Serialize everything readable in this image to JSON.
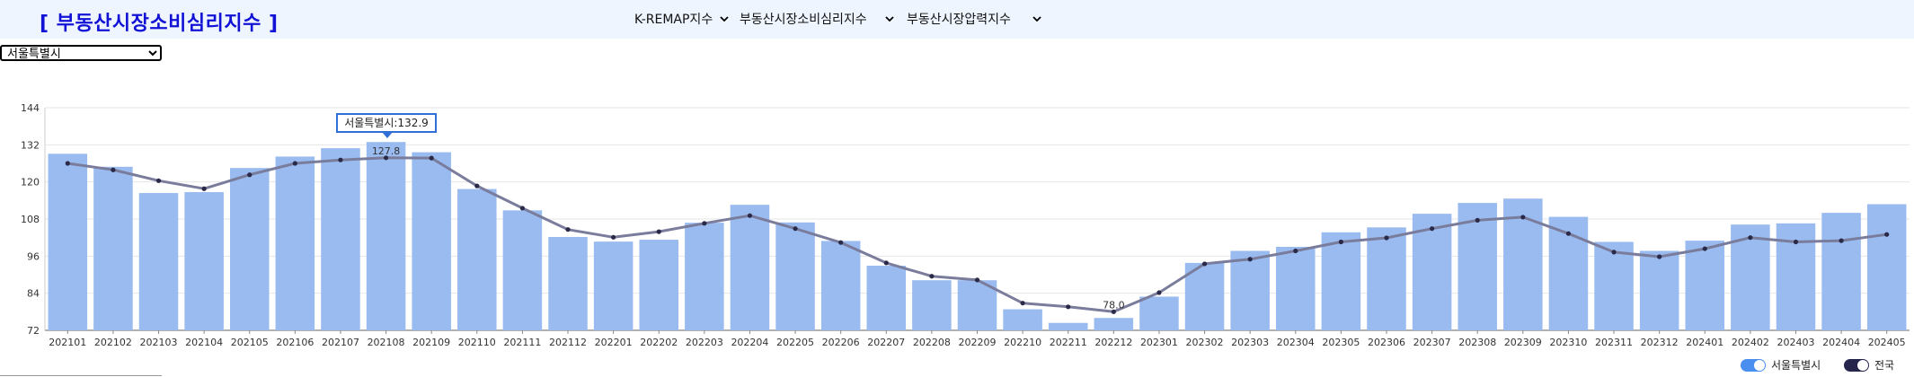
{
  "header": {
    "title": "[ 부동산시장소비심리지수 ]",
    "nav": [
      {
        "label": "K-REMAP지수"
      },
      {
        "label": "부동산시장소비심리지수"
      },
      {
        "label": "부동산시장압력지수"
      }
    ]
  },
  "region_select": {
    "value": "서울특별시"
  },
  "tooltip": {
    "text": "서울특별시:132.9"
  },
  "legend": [
    {
      "label": "서울특별시",
      "color": "#4a8ef0"
    },
    {
      "label": "전국",
      "color": "#25244a"
    }
  ],
  "chart_data": {
    "type": "bar",
    "categories": [
      "202101",
      "202102",
      "202103",
      "202104",
      "202105",
      "202106",
      "202107",
      "202108",
      "202109",
      "202110",
      "202111",
      "202112",
      "202201",
      "202202",
      "202203",
      "202204",
      "202205",
      "202206",
      "202207",
      "202208",
      "202209",
      "202210",
      "202211",
      "202212",
      "202301",
      "202302",
      "202303",
      "202304",
      "202305",
      "202306",
      "202307",
      "202308",
      "202309",
      "202310",
      "202311",
      "202312",
      "202401",
      "202402",
      "202403",
      "202404",
      "202405"
    ],
    "series": [
      {
        "name": "서울특별시",
        "kind": "bar",
        "color": "#99bbf0",
        "values": [
          129.1,
          124.9,
          116.4,
          116.7,
          124.5,
          128.2,
          130.9,
          132.9,
          129.6,
          117.7,
          110.8,
          102.2,
          100.7,
          101.3,
          106.8,
          112.6,
          106.9,
          100.9,
          92.9,
          88.2,
          88.2,
          78.8,
          74.4,
          76.0,
          82.9,
          93.8,
          97.7,
          99.0,
          103.7,
          105.3,
          109.7,
          113.2,
          114.6,
          108.7,
          100.6,
          97.7,
          101.0,
          106.2,
          106.6,
          110.0,
          112.8
        ]
      },
      {
        "name": "전국",
        "kind": "line",
        "color": "#7a7c9c",
        "values": [
          126.0,
          123.9,
          120.4,
          117.8,
          122.3,
          126.0,
          127.1,
          127.8,
          127.7,
          118.7,
          111.5,
          104.6,
          102.1,
          103.9,
          106.6,
          109.1,
          104.9,
          100.4,
          93.8,
          89.5,
          88.3,
          80.8,
          79.6,
          78.0,
          84.2,
          93.5,
          95.0,
          97.7,
          100.6,
          101.9,
          104.9,
          107.6,
          108.6,
          103.3,
          97.3,
          95.8,
          98.4,
          102.0,
          100.6,
          101.0,
          103.0
        ]
      }
    ],
    "labels": [
      {
        "category": "202108",
        "value": "127.8"
      },
      {
        "category": "202212",
        "value": "78.0"
      }
    ],
    "yticks": [
      72,
      84,
      96,
      108,
      120,
      132,
      144
    ],
    "ylim": [
      72,
      144
    ],
    "grid": true,
    "legend_position": "bottom-right"
  }
}
